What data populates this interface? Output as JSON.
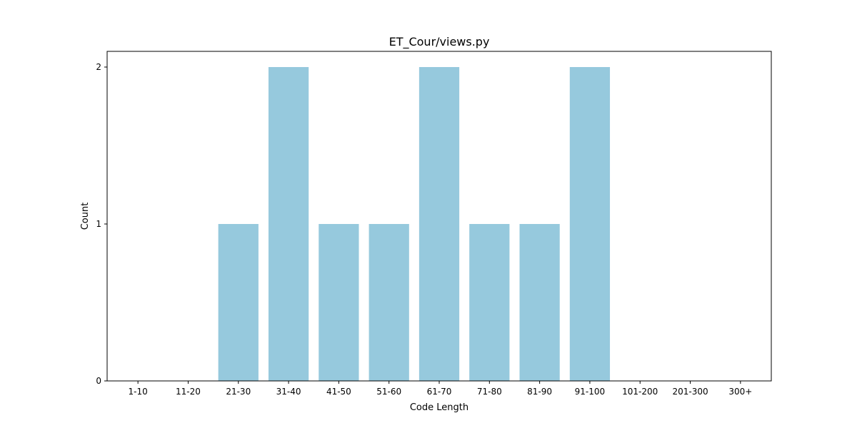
{
  "chart_data": {
    "type": "bar",
    "title": "ET_Cour/views.py",
    "xlabel": "Code Length",
    "ylabel": "Count",
    "categories": [
      "1-10",
      "11-20",
      "21-30",
      "31-40",
      "41-50",
      "51-60",
      "61-70",
      "71-80",
      "81-90",
      "91-100",
      "101-200",
      "201-300",
      "300+"
    ],
    "values": [
      0,
      0,
      1,
      2,
      1,
      1,
      2,
      1,
      1,
      2,
      0,
      0,
      0
    ],
    "yticks": [
      0,
      1,
      2
    ],
    "ylim": [
      0,
      2.1
    ],
    "grid": false,
    "bar_color": "#96c9dd"
  }
}
